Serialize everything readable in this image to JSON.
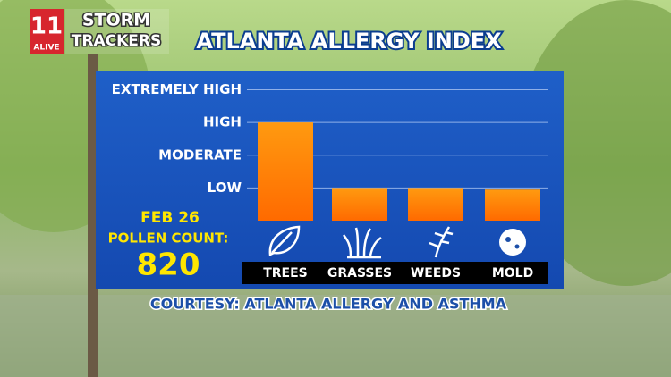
{
  "logo": {
    "number": "11",
    "station": "ALIVE",
    "line1": "STORM",
    "line2": "TRACKERS"
  },
  "chart_data": {
    "type": "bar",
    "title": "ATLANTA ALLERGY INDEX",
    "categories": [
      "TREES",
      "GRASSES",
      "WEEDS",
      "MOLD"
    ],
    "values": [
      3,
      1,
      1,
      0.95
    ],
    "color": "#ff8c00",
    "ylim": [
      0,
      4
    ],
    "yticks": [
      {
        "value": 1,
        "label": "LOW"
      },
      {
        "value": 2,
        "label": "MODERATE"
      },
      {
        "value": 3,
        "label": "HIGH"
      },
      {
        "value": 4,
        "label": "EXTREMELY HIGH"
      }
    ],
    "grid": true,
    "date": "FEB 26",
    "pollen_label": "POLLEN COUNT:",
    "pollen_count": 820,
    "source": "COURTESY: ATLANTA ALLERGY AND ASTHMA"
  }
}
